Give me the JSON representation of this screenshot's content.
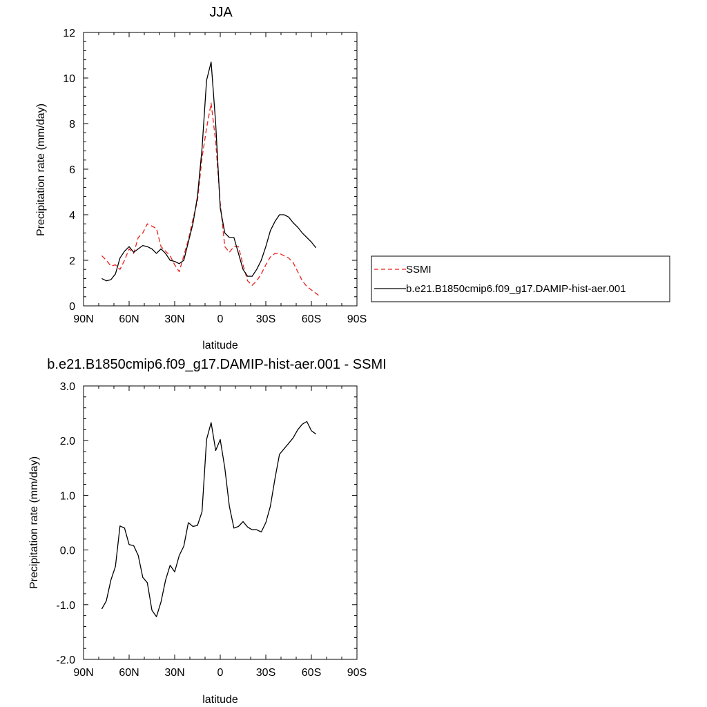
{
  "chart_data": [
    {
      "type": "line",
      "title": "JJA",
      "xlabel": "latitude",
      "ylabel": "Precipitation rate (mm/day)",
      "xlim": [
        90,
        -90
      ],
      "ylim": [
        0,
        12
      ],
      "xticks": [
        90,
        60,
        30,
        0,
        -30,
        -60,
        -90
      ],
      "xtick_labels": [
        "90N",
        "60N",
        "30N",
        "0",
        "30S",
        "60S",
        "90S"
      ],
      "yticks": [
        0,
        2,
        4,
        6,
        8,
        10,
        12
      ],
      "ytick_labels": [
        "0",
        "2",
        "4",
        "6",
        "8",
        "10",
        "12"
      ],
      "legend_position": "right",
      "series": [
        {
          "name": "SSMI",
          "color": "#e8211c",
          "dash": "dashed",
          "x": [
            78,
            75,
            72,
            69,
            66,
            63,
            60,
            57,
            54,
            51,
            48,
            45,
            42,
            39,
            36,
            33,
            30,
            27,
            24,
            21,
            18,
            15,
            12,
            9,
            6,
            3,
            0,
            -3,
            -6,
            -9,
            -12,
            -15,
            -18,
            -21,
            -24,
            -27,
            -30,
            -33,
            -36,
            -39,
            -42,
            -45,
            -48,
            -51,
            -54,
            -57,
            -60,
            -63,
            -66
          ],
          "y": [
            2.2,
            2.0,
            1.75,
            1.8,
            1.6,
            2.0,
            2.5,
            2.3,
            3.0,
            3.2,
            3.6,
            3.5,
            3.4,
            2.6,
            2.4,
            2.2,
            1.8,
            1.5,
            2.2,
            2.9,
            3.8,
            4.6,
            6.5,
            7.8,
            8.9,
            7.2,
            4.5,
            2.6,
            2.35,
            2.6,
            2.6,
            1.8,
            1.1,
            0.9,
            1.1,
            1.4,
            1.8,
            2.15,
            2.3,
            2.3,
            2.2,
            2.1,
            1.9,
            1.5,
            1.1,
            0.85,
            0.7,
            0.55,
            0.4
          ]
        },
        {
          "name": "b.e21.B1850cmip6.f09_g17.DAMIP-hist-aer.001",
          "color": "#000000",
          "dash": "solid",
          "x": [
            78,
            75,
            72,
            69,
            66,
            63,
            60,
            57,
            54,
            51,
            48,
            45,
            42,
            39,
            36,
            33,
            30,
            27,
            24,
            21,
            18,
            15,
            12,
            9,
            6,
            3,
            0,
            -3,
            -6,
            -9,
            -12,
            -15,
            -18,
            -21,
            -24,
            -27,
            -30,
            -33,
            -36,
            -39,
            -42,
            -45,
            -48,
            -51,
            -54,
            -57,
            -60,
            -63
          ],
          "y": [
            1.2,
            1.1,
            1.15,
            1.4,
            2.1,
            2.4,
            2.6,
            2.35,
            2.5,
            2.65,
            2.6,
            2.5,
            2.3,
            2.5,
            2.3,
            2.0,
            1.95,
            1.85,
            2.0,
            2.8,
            3.6,
            4.8,
            6.9,
            9.9,
            10.7,
            8.0,
            4.3,
            3.2,
            3.0,
            3.0,
            2.3,
            1.6,
            1.3,
            1.3,
            1.6,
            2.0,
            2.6,
            3.3,
            3.7,
            4.0,
            4.0,
            3.9,
            3.65,
            3.45,
            3.2,
            3.0,
            2.8,
            2.55
          ]
        }
      ]
    },
    {
      "type": "line",
      "title": "b.e21.B1850cmip6.f09_g17.DAMIP-hist-aer.001 - SSMI",
      "xlabel": "latitude",
      "ylabel": "Precipitation rate (mm/day)",
      "xlim": [
        90,
        -90
      ],
      "ylim": [
        -2,
        3
      ],
      "xticks": [
        90,
        60,
        30,
        0,
        -30,
        -60,
        -90
      ],
      "xtick_labels": [
        "90N",
        "60N",
        "30N",
        "0",
        "30S",
        "60S",
        "90S"
      ],
      "yticks": [
        -2,
        -1,
        0,
        1,
        2,
        3
      ],
      "ytick_labels": [
        "-2.0",
        "-1.0",
        "0.0",
        "1.0",
        "2.0",
        "3.0"
      ],
      "series": [
        {
          "color": "#000000",
          "dash": "solid",
          "x": [
            78,
            75,
            72,
            69,
            66,
            63,
            60,
            57,
            54,
            51,
            48,
            45,
            42,
            39,
            36,
            33,
            30,
            27,
            24,
            21,
            18,
            15,
            12,
            9,
            6,
            3,
            0,
            -3,
            -6,
            -9,
            -12,
            -15,
            -18,
            -21,
            -24,
            -27,
            -30,
            -33,
            -36,
            -39,
            -42,
            -45,
            -48,
            -51,
            -54,
            -57,
            -60,
            -63
          ],
          "y": [
            -1.08,
            -0.93,
            -0.55,
            -0.3,
            0.44,
            0.4,
            0.1,
            0.08,
            -0.1,
            -0.5,
            -0.6,
            -1.1,
            -1.22,
            -0.95,
            -0.55,
            -0.28,
            -0.4,
            -0.1,
            0.07,
            0.5,
            0.43,
            0.45,
            0.7,
            2.02,
            2.33,
            1.82,
            2.02,
            1.5,
            0.8,
            0.4,
            0.43,
            0.52,
            0.42,
            0.37,
            0.37,
            0.33,
            0.5,
            0.8,
            1.3,
            1.75,
            1.85,
            1.95,
            2.05,
            2.2,
            2.3,
            2.35,
            2.18,
            2.12
          ]
        }
      ]
    }
  ]
}
